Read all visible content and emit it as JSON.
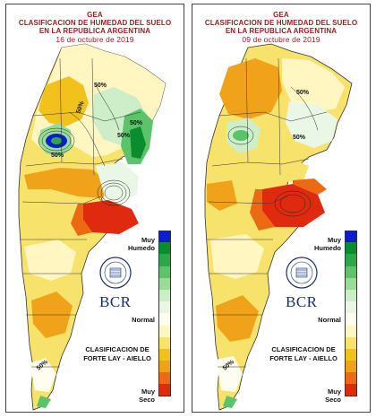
{
  "panels": [
    {
      "header_line1": "GEA",
      "header_line2": "CLASIFICACION DE HUMEDAD DEL SUELO",
      "header_line3": "EN LA REPUBLICA ARGENTINA",
      "date": "16 de octubre de 2019",
      "contour_labels": [
        "50%",
        "50%",
        "50%",
        "50%",
        "50%",
        "50%"
      ]
    },
    {
      "header_line1": "GEA",
      "header_line2": "CLASIFICACION DE HUMEDAD DEL SUELO",
      "header_line3": "EN LA REPUBLICA ARGENTINA",
      "date": "09 de octubre de 2019",
      "contour_labels": [
        "50%",
        "50%",
        "50%"
      ]
    }
  ],
  "legend": {
    "top_label_1": "Muy",
    "top_label_2": "Humedo",
    "middle_label": "Normal",
    "bottom_label_1": "Muy",
    "bottom_label_2": "Seco",
    "colors": [
      "#0a1ecf",
      "#0b8c2f",
      "#2aa84a",
      "#5cc36b",
      "#98dc98",
      "#cdeec9",
      "#eaf7e6",
      "#fffdf0",
      "#fff6c2",
      "#f7e36b",
      "#f2c21c",
      "#f0a21a",
      "#ec6a14",
      "#e02a10"
    ]
  },
  "brand": {
    "logo_text": "BCR",
    "seal_text": "BOLSA DE COMERCIO DE ROSARIO",
    "classification_line1": "CLASIFICACION DE",
    "classification_line2": "FORTE LAY - AIELLO"
  }
}
